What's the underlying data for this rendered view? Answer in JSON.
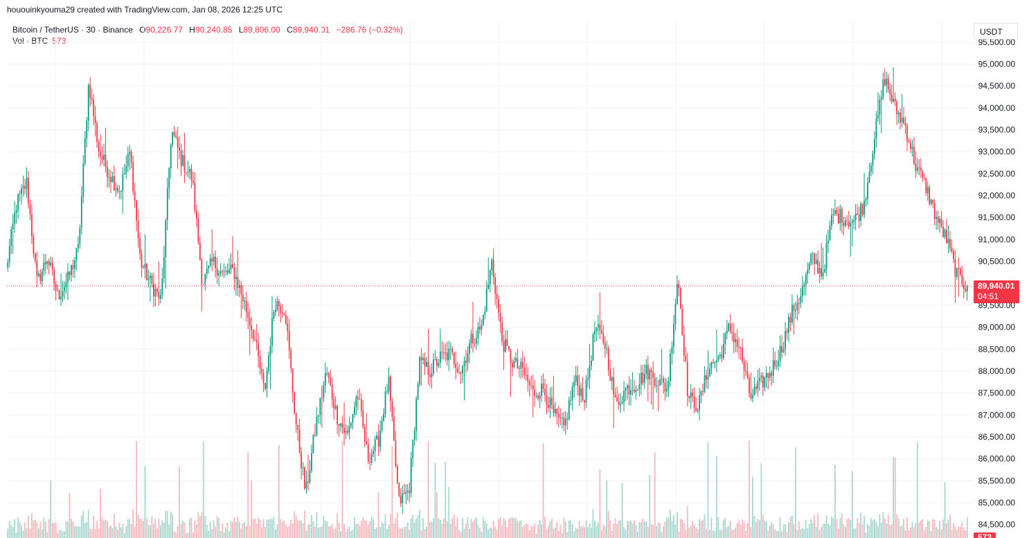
{
  "attribution": "hououinkyouma29 created with TradingView.com, Jan 08, 2026 12:25 UTC",
  "legend": {
    "symbol": "Bitcoin / TetherUS · 30 · Binance",
    "open_label": "O",
    "open": "90,226.77",
    "high_label": "H",
    "high": "90,240.85",
    "low_label": "L",
    "low": "89,806.00",
    "close_label": "C",
    "close": "89,940.01",
    "change": "−286.76 (−0.32%)",
    "volume_label": "Vol · BTC",
    "volume": "573"
  },
  "currency": "USDT",
  "colors": {
    "up": "#089981",
    "down": "#f23645",
    "up_vol": "#93cdc3",
    "down_vol": "#f5a6ad",
    "grid": "#f0f3fa"
  },
  "chart_data": {
    "type": "candlestick",
    "symbol": "BTCUSDT",
    "interval": "30",
    "ylim": [
      84300,
      95500
    ],
    "y_ticks": [
      95500,
      95000,
      94500,
      94000,
      93500,
      93000,
      92500,
      92000,
      91500,
      91000,
      90500,
      90000,
      89500,
      89000,
      88500,
      88000,
      87500,
      87000,
      86500,
      86000,
      85500,
      85000,
      84500
    ],
    "y_tick_labels": [
      "95,500.00",
      "95,000.00",
      "94,500.00",
      "94,000.00",
      "93,500.00",
      "93,000.00",
      "92,500.00",
      "92,000.00",
      "91,500.00",
      "91,000.00",
      "90,500.00",
      "90,000.00",
      "89,500.00",
      "89,000.00",
      "88,500.00",
      "88,000.00",
      "87,500.00",
      "87,000.00",
      "86,500.00",
      "86,000.00",
      "85,500.00",
      "85,000.00",
      "84,500.00"
    ],
    "last_price": 89940.01,
    "last_price_label": "89,940.01",
    "countdown": "04:51",
    "volume_label": "573",
    "price_path": [
      90300,
      91800,
      92300,
      90000,
      90600,
      89700,
      90100,
      90800,
      94600,
      93000,
      92500,
      92100,
      93000,
      90500,
      90000,
      89600,
      93500,
      92800,
      92400,
      90000,
      90500,
      90200,
      90300,
      89600,
      88800,
      87500,
      89600,
      89400,
      86900,
      85200,
      86800,
      88000,
      87000,
      86500,
      87500,
      86000,
      86400,
      87800,
      85000,
      85300,
      88200,
      88000,
      88300,
      88400,
      88000,
      88700,
      89000,
      90500,
      88700,
      88200,
      88000,
      87500,
      87600,
      87000,
      86700,
      87800,
      87400,
      89000,
      88600,
      87200,
      87600,
      87700,
      88000,
      87800,
      87600,
      90200,
      87400,
      87200,
      88100,
      88300,
      89000,
      88500,
      87400,
      87700,
      88000,
      88500,
      89300,
      89800,
      90600,
      90200,
      91600,
      91500,
      91400,
      91800,
      93300,
      94700,
      94000,
      93600,
      92700,
      92200,
      91500,
      91000,
      90200,
      89900
    ]
  }
}
